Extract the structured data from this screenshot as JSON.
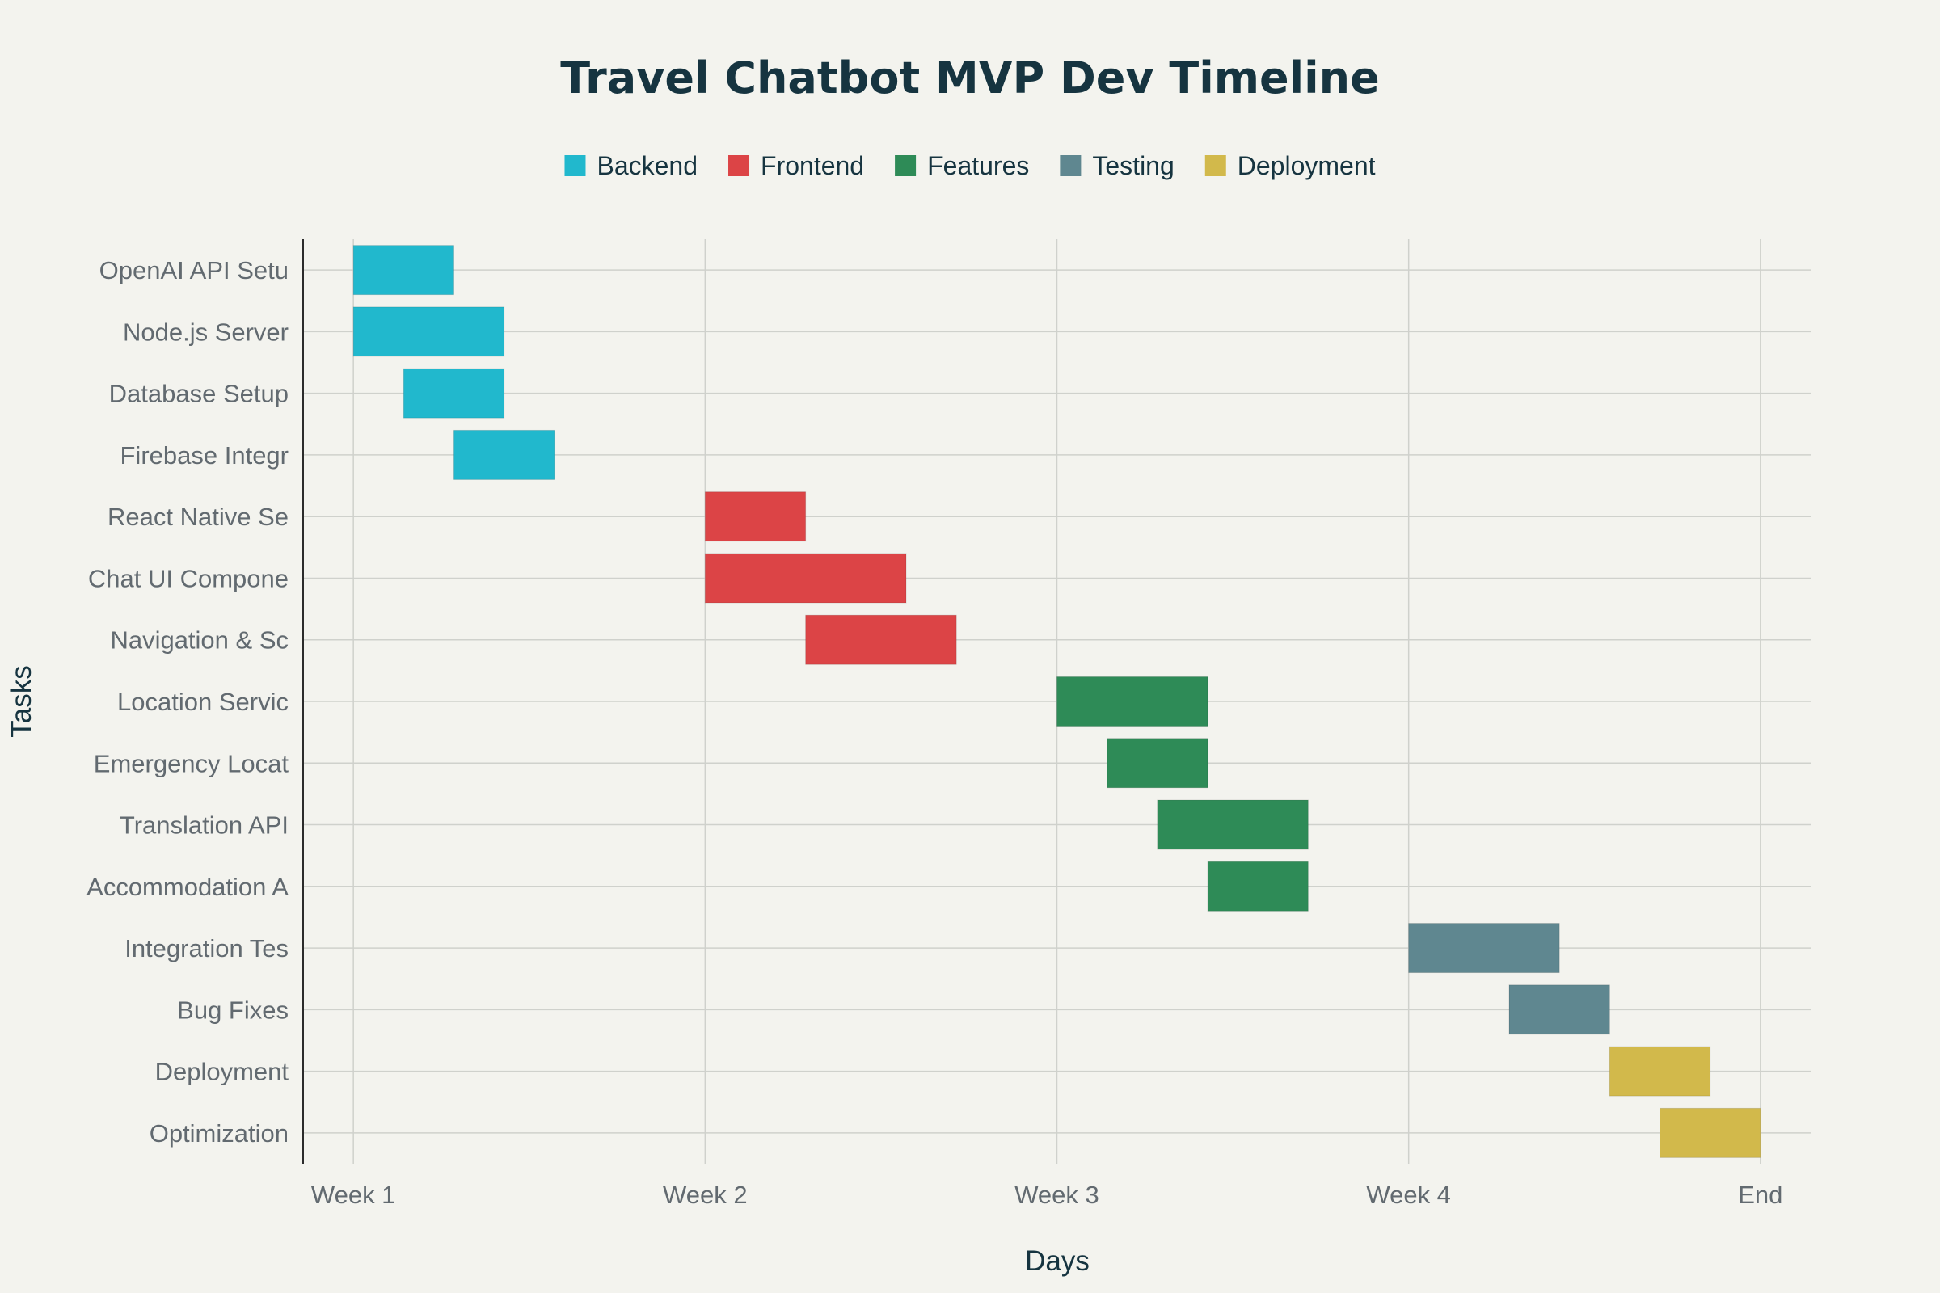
{
  "chart_data": {
    "type": "bar",
    "subtype": "gantt",
    "orientation": "horizontal",
    "title": "Travel Chatbot MVP Dev Timeline",
    "xlabel": "Days",
    "ylabel": "Tasks",
    "xlim": [
      -1,
      29
    ],
    "x_ticks": [
      {
        "value": 0,
        "label": "Week 1"
      },
      {
        "value": 7,
        "label": "Week 2"
      },
      {
        "value": 14,
        "label": "Week 3"
      },
      {
        "value": 21,
        "label": "Week 4"
      },
      {
        "value": 28,
        "label": "End"
      }
    ],
    "grid": true,
    "legend_position": "top-center",
    "categories": [
      {
        "name": "Backend",
        "color": "#21b8cd"
      },
      {
        "name": "Frontend",
        "color": "#dc4446"
      },
      {
        "name": "Features",
        "color": "#2e8b57"
      },
      {
        "name": "Testing",
        "color": "#5f8790"
      },
      {
        "name": "Deployment",
        "color": "#d2b94b"
      }
    ],
    "tasks": [
      {
        "label": "OpenAI API Setu",
        "category": "Backend",
        "start": 0,
        "end": 2
      },
      {
        "label": "Node.js Server",
        "category": "Backend",
        "start": 0,
        "end": 3
      },
      {
        "label": "Database Setup",
        "category": "Backend",
        "start": 1,
        "end": 3
      },
      {
        "label": "Firebase Integr",
        "category": "Backend",
        "start": 2,
        "end": 4
      },
      {
        "label": "React Native Se",
        "category": "Frontend",
        "start": 7,
        "end": 9
      },
      {
        "label": "Chat UI Compone",
        "category": "Frontend",
        "start": 7,
        "end": 11
      },
      {
        "label": "Navigation & Sc",
        "category": "Frontend",
        "start": 9,
        "end": 12
      },
      {
        "label": "Location Servic",
        "category": "Features",
        "start": 14,
        "end": 17
      },
      {
        "label": "Emergency Locat",
        "category": "Features",
        "start": 15,
        "end": 17
      },
      {
        "label": "Translation API",
        "category": "Features",
        "start": 16,
        "end": 19
      },
      {
        "label": "Accommodation A",
        "category": "Features",
        "start": 17,
        "end": 19
      },
      {
        "label": "Integration Tes",
        "category": "Testing",
        "start": 21,
        "end": 24
      },
      {
        "label": "Bug Fixes",
        "category": "Testing",
        "start": 23,
        "end": 25
      },
      {
        "label": "Deployment",
        "category": "Deployment",
        "start": 25,
        "end": 27
      },
      {
        "label": "Optimization",
        "category": "Deployment",
        "start": 26,
        "end": 28
      }
    ]
  }
}
